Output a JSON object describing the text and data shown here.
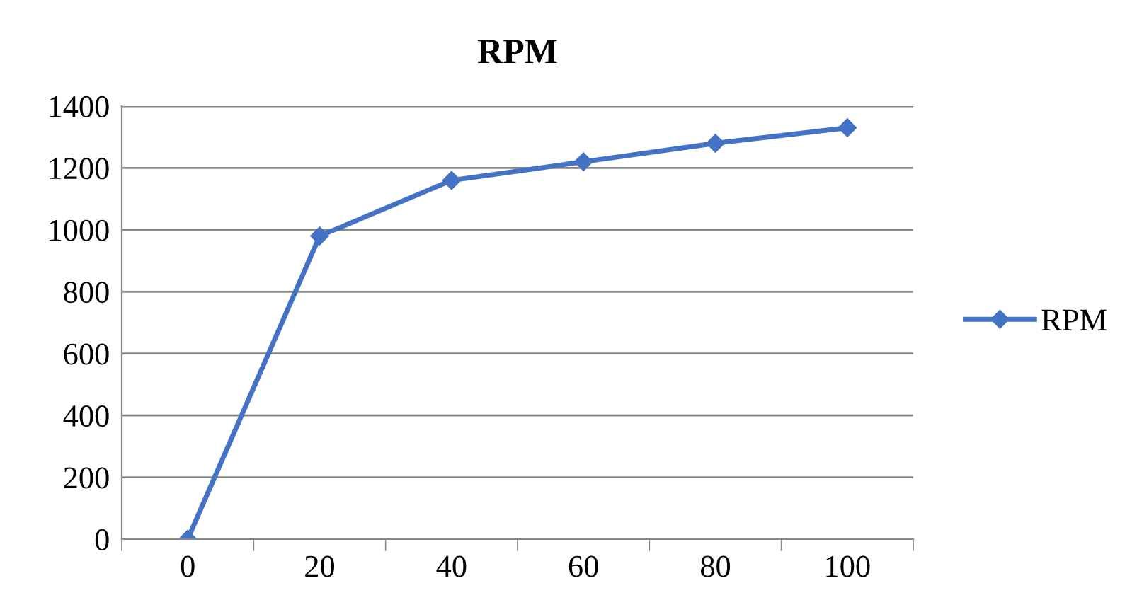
{
  "chart_data": {
    "type": "line",
    "title": "RPM",
    "categories": [
      "0",
      "20",
      "40",
      "60",
      "80",
      "100"
    ],
    "series": [
      {
        "name": "RPM",
        "color": "#4472c4",
        "values": [
          0,
          980,
          1160,
          1220,
          1280,
          1330
        ]
      }
    ],
    "ylim": [
      0,
      1400
    ],
    "yticks": [
      0,
      200,
      400,
      600,
      800,
      1000,
      1200,
      1400
    ],
    "grid": "y",
    "legend": "right",
    "marker": "diamond",
    "line_style": "solid"
  }
}
